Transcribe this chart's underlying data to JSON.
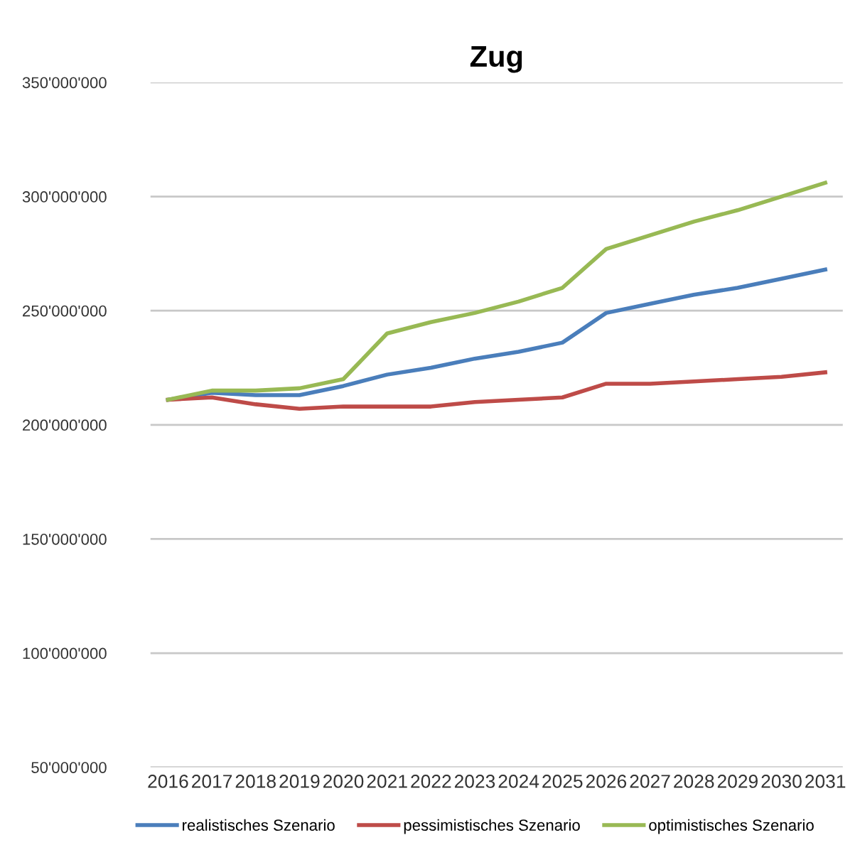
{
  "chart_data": {
    "type": "line",
    "title": "Zug",
    "categories": [
      "2016",
      "2017",
      "2018",
      "2019",
      "2020",
      "2021",
      "2022",
      "2023",
      "2024",
      "2025",
      "2026",
      "2027",
      "2028",
      "2029",
      "2030",
      "2031"
    ],
    "series": [
      {
        "name": "realistisches Szenario",
        "color": "#4a7ebb",
        "values": [
          211000000,
          214000000,
          213000000,
          213000000,
          217000000,
          222000000,
          225000000,
          229000000,
          232000000,
          236000000,
          249000000,
          253000000,
          257000000,
          260000000,
          264000000,
          268000000
        ]
      },
      {
        "name": "pessimistisches Szenario",
        "color": "#be4b48",
        "values": [
          211000000,
          212000000,
          209000000,
          207000000,
          208000000,
          208000000,
          208000000,
          210000000,
          211000000,
          212000000,
          218000000,
          218000000,
          219000000,
          220000000,
          221000000,
          223000000
        ]
      },
      {
        "name": "optimistisches Szenario",
        "color": "#98b954",
        "values": [
          211000000,
          215000000,
          215000000,
          216000000,
          220000000,
          240000000,
          245000000,
          249000000,
          254000000,
          260000000,
          277000000,
          283000000,
          289000000,
          294000000,
          300000000,
          306000000
        ]
      }
    ],
    "ylim": [
      50000000,
      350000000
    ],
    "yticks": [
      {
        "value": 50000000,
        "label": "50'000'000"
      },
      {
        "value": 100000000,
        "label": "100'000'000"
      },
      {
        "value": 150000000,
        "label": "150'000'000"
      },
      {
        "value": 200000000,
        "label": "200'000'000"
      },
      {
        "value": 250000000,
        "label": "250'000'000"
      },
      {
        "value": 300000000,
        "label": "300'000'000"
      },
      {
        "value": 350000000,
        "label": "350'000'000"
      }
    ],
    "grid": "y",
    "legend": "bottom",
    "marker": "none",
    "line_style": "solid"
  }
}
